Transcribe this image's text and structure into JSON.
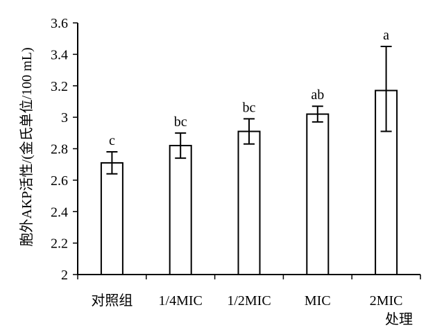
{
  "chart_data": {
    "type": "bar",
    "title": "",
    "xlabel": "处理",
    "ylabel": "胞外AKP活性/(金氏单位/100 mL)",
    "categories": [
      "对照组",
      "1/4MIC",
      "1/2MIC",
      "MIC",
      "2MIC"
    ],
    "values": [
      2.71,
      2.82,
      2.91,
      3.02,
      3.17
    ],
    "error_low": [
      2.64,
      2.74,
      2.83,
      2.97,
      2.91
    ],
    "error_high": [
      2.78,
      2.9,
      2.99,
      3.07,
      3.45
    ],
    "significance": [
      "c",
      "bc",
      "bc",
      "ab",
      "a"
    ],
    "ylim": [
      2,
      3.6
    ],
    "yticks": [
      {
        "value": 2,
        "label": "2"
      },
      {
        "value": 2.2,
        "label": "2.2"
      },
      {
        "value": 2.4,
        "label": "2.4"
      },
      {
        "value": 2.6,
        "label": "2.6"
      },
      {
        "value": 2.8,
        "label": "2.8"
      },
      {
        "value": 3,
        "label": "3"
      },
      {
        "value": 3.2,
        "label": "3.2"
      },
      {
        "value": 3.4,
        "label": "3.4"
      },
      {
        "value": 3.6,
        "label": "3.6"
      }
    ],
    "grid": false,
    "legend": "none",
    "colors": {
      "bar_fill": "#ffffff",
      "bar_stroke": "#000000",
      "axis": "#000000"
    }
  }
}
